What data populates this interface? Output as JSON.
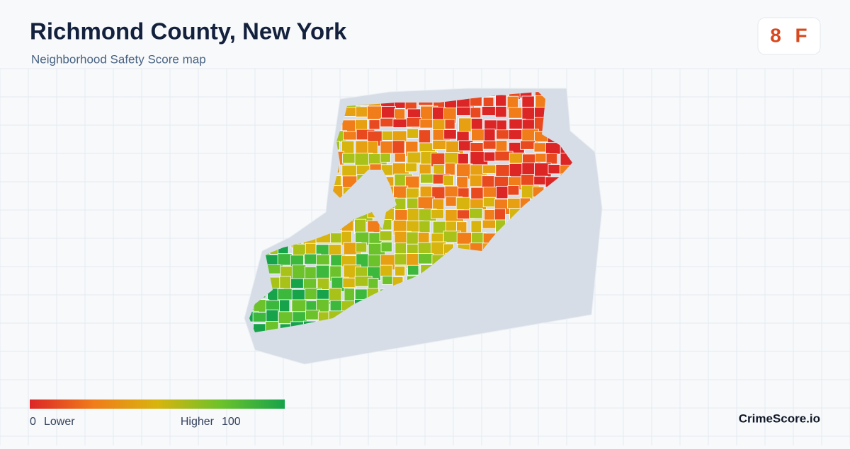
{
  "header": {
    "title": "Richmond County, New York",
    "subtitle": "Neighborhood Safety Score map"
  },
  "badge": {
    "score": 8,
    "grade": "F"
  },
  "legend": {
    "min": 0,
    "min_label": "Lower",
    "max_label": "Higher",
    "max": 100
  },
  "footer": {
    "brand": "CrimeScore.io"
  }
}
